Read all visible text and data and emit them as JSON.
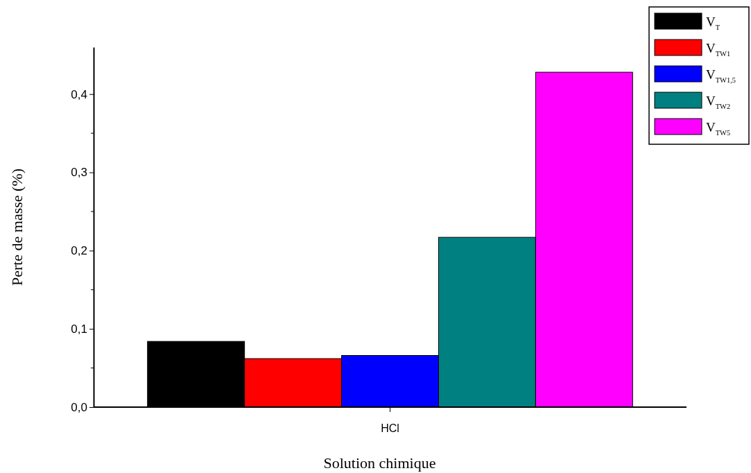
{
  "chart_data": {
    "type": "bar",
    "xlabel": "Solution chimique",
    "ylabel": "Perte de masse (%)",
    "categories": [
      "HCl"
    ],
    "series": [
      {
        "name": "V$_{T}$",
        "color": "#000000",
        "values": [
          0.084
        ]
      },
      {
        "name": "V$_{TW1}$",
        "color": "#ff0000",
        "values": [
          0.062
        ]
      },
      {
        "name": "V$_{TW1,5}$",
        "color": "#0000ff",
        "values": [
          0.066
        ]
      },
      {
        "name": "V$_{TW2}$",
        "color": "#008080",
        "values": [
          0.217
        ]
      },
      {
        "name": "V$_{TW5}$",
        "color": "#ff00ff",
        "values": [
          0.428
        ]
      }
    ],
    "ylim": [
      0,
      0.46
    ],
    "yticks": [
      {
        "value": 0,
        "label": "0,0"
      },
      {
        "value": 0.1,
        "label": "0,1"
      },
      {
        "value": 0.2,
        "label": "0,2"
      },
      {
        "value": 0.3,
        "label": "0,3"
      },
      {
        "value": 0.4,
        "label": "0,4"
      }
    ],
    "grid": false,
    "legend": "top right"
  }
}
